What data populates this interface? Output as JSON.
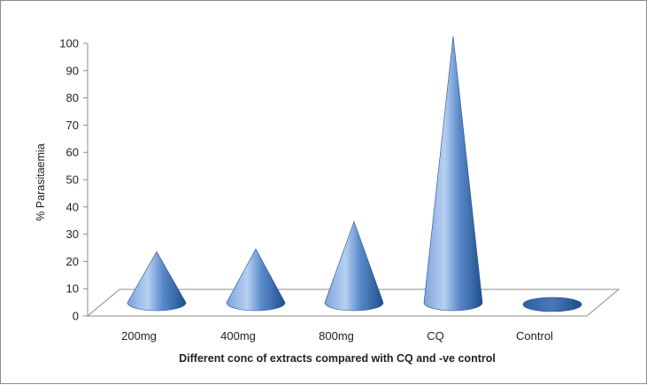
{
  "chart_data": {
    "type": "bar",
    "mark_shape": "cone",
    "categories": [
      "200mg",
      "400mg",
      "800mg",
      "CQ",
      "Control"
    ],
    "values": [
      21,
      22,
      32,
      100,
      0
    ],
    "xlabel": "Different conc of extracts compared with CQ and -ve control",
    "ylabel": "% Parasitaemia",
    "ylim": [
      0,
      100
    ],
    "yticks": [
      0,
      10,
      20,
      30,
      40,
      50,
      60,
      70,
      80,
      90,
      100
    ],
    "grid": false,
    "legend": "none",
    "colors": {
      "cone_light": "#a9c6ef",
      "cone_mid": "#4f81bd",
      "cone_dark": "#1f4e8c",
      "floor": "#ffffff",
      "floor_edge": "#8c8c8c",
      "axis": "#8c8c8c"
    }
  }
}
